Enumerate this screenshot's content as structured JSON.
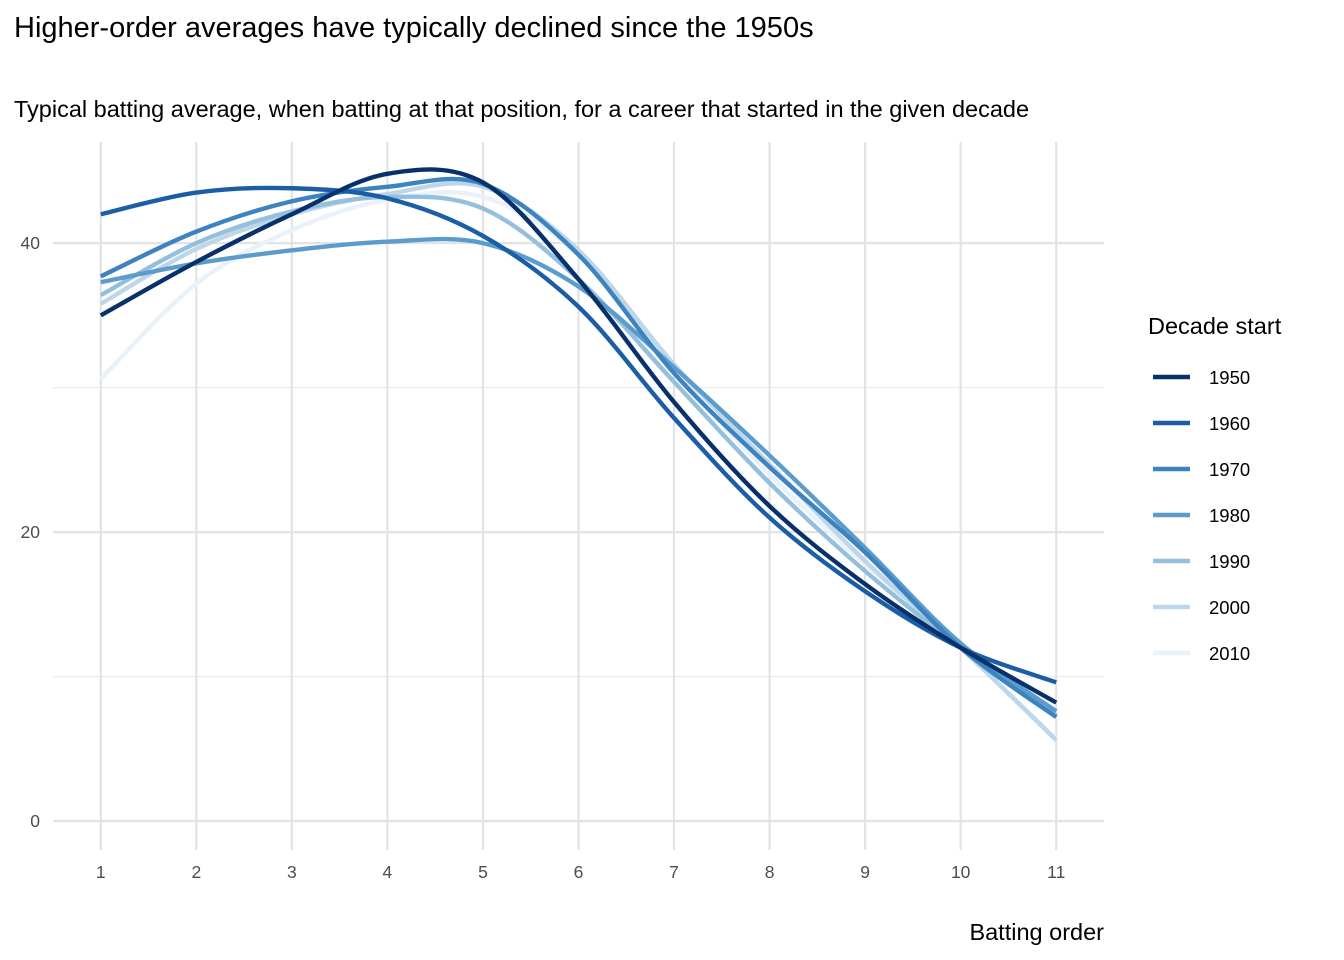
{
  "chart_data": {
    "type": "line",
    "title": "Higher-order averages have typically declined since the 1950s",
    "subtitle": "Typical batting average, when batting at that position, for a career that started in the given decade",
    "xlabel": "Batting order",
    "ylabel": "",
    "x": [
      1,
      2,
      3,
      4,
      5,
      6,
      7,
      8,
      9,
      10,
      11
    ],
    "xticks": [
      "1",
      "2",
      "3",
      "4",
      "5",
      "6",
      "7",
      "8",
      "9",
      "10",
      "11"
    ],
    "yticks": [
      "0",
      "20",
      "40"
    ],
    "xlim": [
      0.5,
      11.5
    ],
    "ylim": [
      -2.0,
      47.0
    ],
    "grid": true,
    "legend": {
      "title": "Decade start",
      "position": "right"
    },
    "series": [
      {
        "name": "1950",
        "color": "#08306b",
        "values": [
          35.0,
          38.7,
          42.0,
          44.8,
          44.2,
          37.5,
          29.0,
          21.8,
          16.4,
          12.0,
          8.2
        ]
      },
      {
        "name": "1960",
        "color": "#1c5ea6",
        "values": [
          42.0,
          43.5,
          43.8,
          43.1,
          40.5,
          35.6,
          27.9,
          21.0,
          15.9,
          12.0,
          9.6
        ]
      },
      {
        "name": "1970",
        "color": "#3c83c0",
        "values": [
          37.7,
          40.8,
          42.9,
          43.9,
          44.1,
          39.2,
          31.0,
          24.5,
          18.6,
          12.0,
          7.2
        ]
      },
      {
        "name": "1980",
        "color": "#5c9ccd",
        "values": [
          37.3,
          38.6,
          39.5,
          40.1,
          40.0,
          37.0,
          31.4,
          25.3,
          18.9,
          12.3,
          7.6
        ]
      },
      {
        "name": "1990",
        "color": "#94bfdd",
        "values": [
          36.4,
          40.0,
          42.2,
          43.2,
          42.4,
          37.5,
          30.4,
          23.4,
          17.3,
          12.0,
          7.3
        ]
      },
      {
        "name": "2000",
        "color": "#bdd6ea",
        "values": [
          35.8,
          39.6,
          42.0,
          43.4,
          43.9,
          39.5,
          31.6,
          24.7,
          18.0,
          12.0,
          5.6
        ]
      },
      {
        "name": "2010",
        "color": "#e9f1fb",
        "values": [
          30.6,
          37.2,
          40.9,
          43.0,
          43.2,
          39.2,
          31.2,
          24.0,
          17.8,
          12.0,
          5.7
        ]
      }
    ]
  }
}
